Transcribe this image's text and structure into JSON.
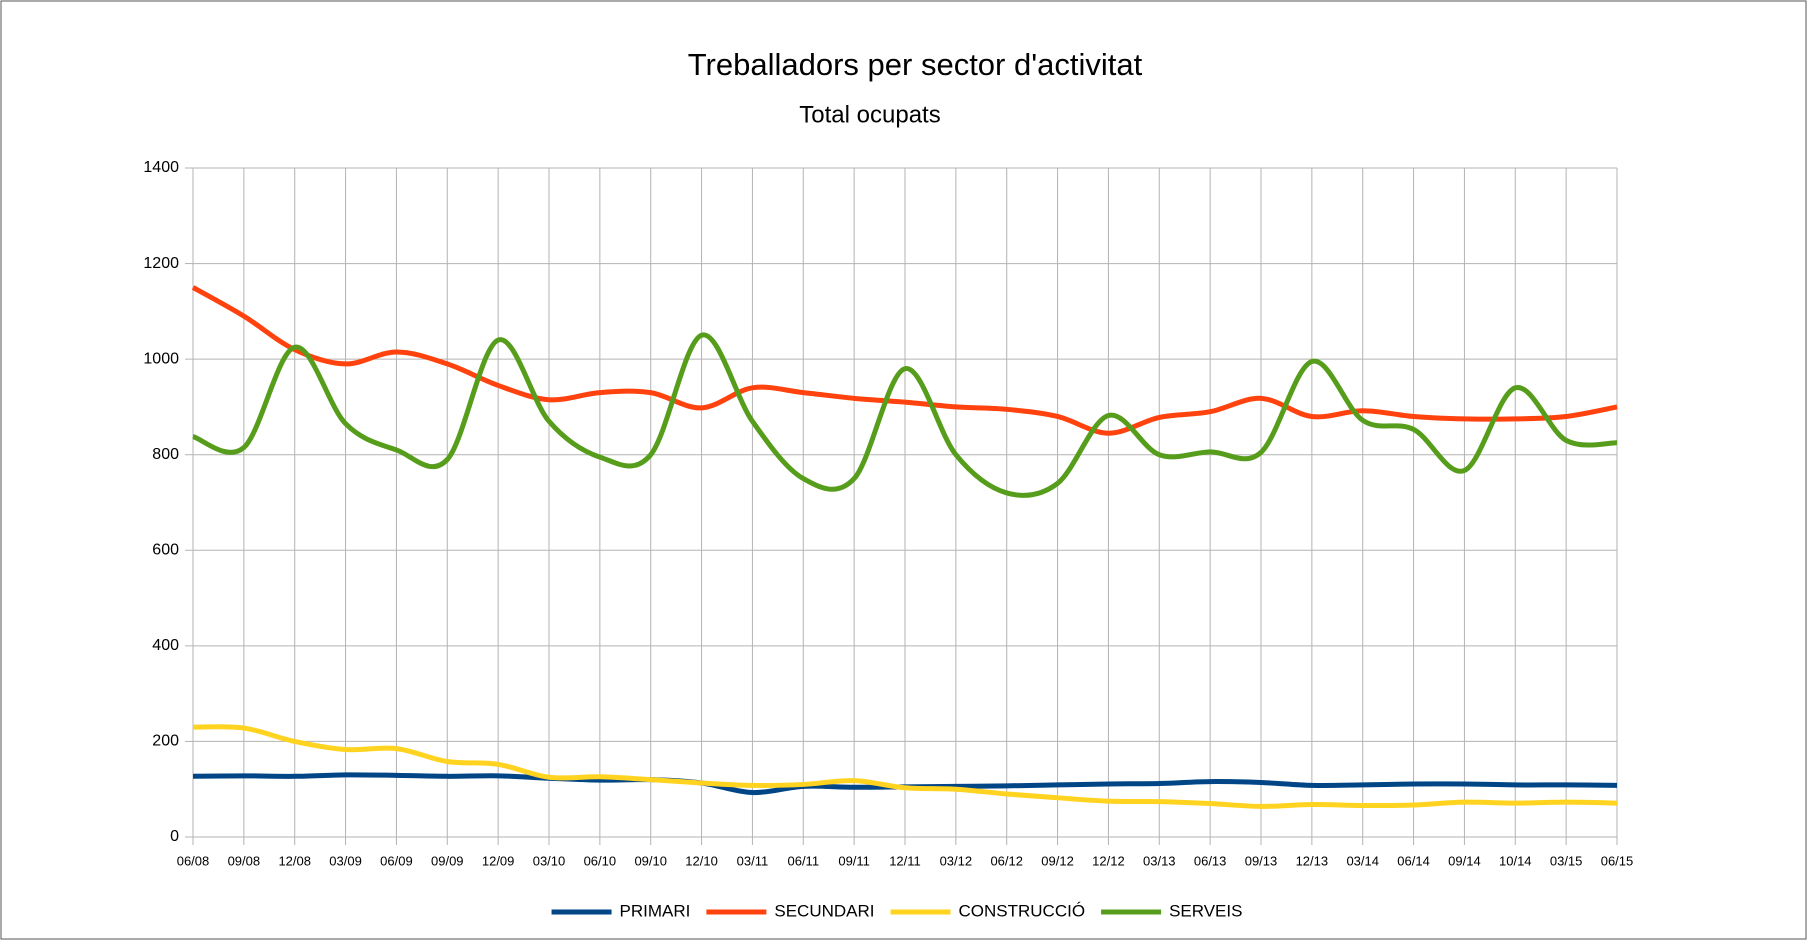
{
  "chart_data": {
    "type": "line",
    "title": "Treballadors per sector d'activitat",
    "subtitle": "Total ocupats",
    "categories": [
      "06/08",
      "09/08",
      "12/08",
      "03/09",
      "06/09",
      "09/09",
      "12/09",
      "03/10",
      "06/10",
      "09/10",
      "12/10",
      "03/11",
      "06/11",
      "09/11",
      "12/11",
      "03/12",
      "06/12",
      "09/12",
      "12/12",
      "03/13",
      "06/13",
      "09/13",
      "12/13",
      "03/14",
      "06/14",
      "09/14",
      "10/14",
      "03/15",
      "06/15"
    ],
    "series": [
      {
        "name": "PRIMARI",
        "color": "#004586",
        "values": [
          127,
          128,
          127,
          130,
          129,
          127,
          128,
          123,
          119,
          120,
          113,
          93,
          106,
          104,
          105,
          106,
          107,
          109,
          111,
          112,
          116,
          114,
          108,
          109,
          111,
          111,
          109,
          109,
          108
        ]
      },
      {
        "name": "SECUNDARI",
        "color": "#ff420e",
        "values": [
          1150,
          1090,
          1020,
          990,
          1015,
          990,
          945,
          915,
          930,
          930,
          898,
          940,
          930,
          918,
          910,
          900,
          895,
          880,
          845,
          878,
          890,
          918,
          880,
          892,
          880,
          875,
          875,
          880,
          900
        ]
      },
      {
        "name": "CONSTRUCCIÓ",
        "color": "#ffd320",
        "values": [
          230,
          228,
          200,
          183,
          185,
          158,
          152,
          125,
          126,
          120,
          113,
          108,
          110,
          118,
          103,
          100,
          90,
          82,
          75,
          74,
          70,
          64,
          68,
          66,
          67,
          73,
          71,
          73,
          71
        ]
      },
      {
        "name": "SERVEIS",
        "color": "#579d1c",
        "values": [
          838,
          815,
          1025,
          865,
          810,
          790,
          1040,
          870,
          795,
          800,
          1050,
          870,
          750,
          750,
          980,
          800,
          720,
          740,
          882,
          800,
          806,
          805,
          995,
          872,
          853,
          767,
          940,
          830,
          825
        ]
      }
    ],
    "ylim": [
      0,
      1400
    ],
    "yticks": [
      0,
      200,
      400,
      600,
      800,
      1000,
      1200,
      1400
    ],
    "grid": true,
    "legend": "bottom"
  }
}
